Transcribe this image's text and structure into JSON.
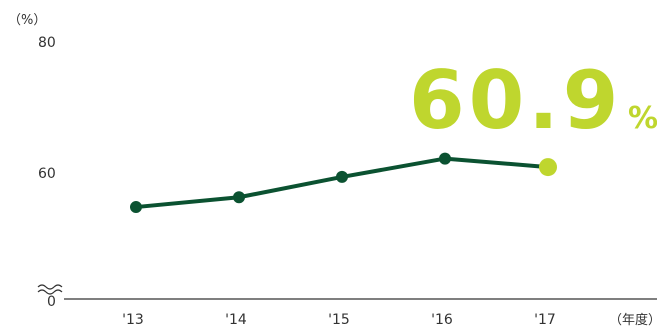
{
  "colors": {
    "line": "#0b5231",
    "highlight": "#bfd62e",
    "axis": "#333333",
    "text": "#333333"
  },
  "chart_data": {
    "type": "line",
    "categories": [
      "'13",
      "'14",
      "'15",
      "'16",
      "'17"
    ],
    "values": [
      54.8,
      56.3,
      59.4,
      62.2,
      60.9
    ],
    "y_ticks": [
      "0",
      "60",
      "80"
    ],
    "y_unit": "（%）",
    "x_unit": "（年度）",
    "ylim": [
      50,
      80
    ],
    "axis_break": true,
    "highlight": {
      "index": 4,
      "number": "60.9",
      "suffix": "%"
    }
  }
}
